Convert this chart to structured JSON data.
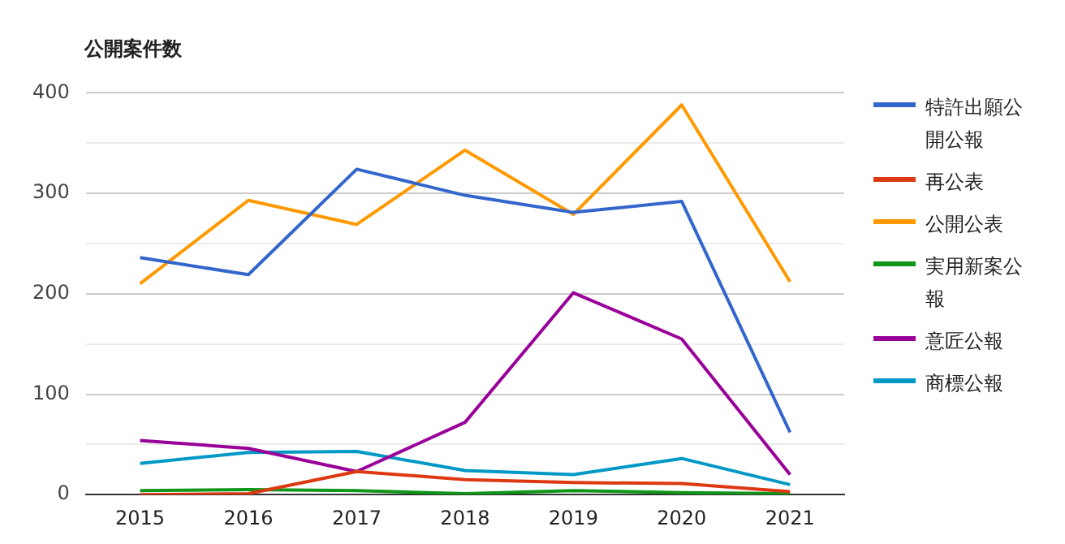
{
  "chart_data": {
    "type": "line",
    "title": "公開案件数",
    "categories": [
      "2015",
      "2016",
      "2017",
      "2018",
      "2019",
      "2020",
      "2021"
    ],
    "series": [
      {
        "name": "特許出願公開公報",
        "color": "#3366cc",
        "values": [
          236,
          219,
          324,
          298,
          281,
          292,
          62
        ]
      },
      {
        "name": "再公表",
        "color": "#dc3912",
        "values": [
          0,
          1,
          23,
          15,
          12,
          11,
          3
        ]
      },
      {
        "name": "公開公表",
        "color": "#ff9900",
        "values": [
          210,
          293,
          269,
          343,
          279,
          388,
          212
        ]
      },
      {
        "name": "実用新案公報",
        "color": "#109618",
        "values": [
          4,
          5,
          4,
          1,
          4,
          2,
          1
        ]
      },
      {
        "name": "意匠公報",
        "color": "#990099",
        "values": [
          54,
          46,
          23,
          72,
          201,
          155,
          20
        ]
      },
      {
        "name": "商標公報",
        "color": "#0099c6",
        "values": [
          31,
          42,
          43,
          24,
          20,
          36,
          10
        ]
      }
    ],
    "ylim": [
      0,
      400
    ],
    "yticks": [
      0,
      {
        "value": 50,
        "label": null
      },
      100,
      {
        "value": 150,
        "label": null
      },
      200,
      {
        "value": 250,
        "label": null
      },
      300,
      {
        "value": 350,
        "label": null
      },
      400
    ],
    "grid": "y",
    "legend": "right",
    "marker": "none",
    "line_style": "solid"
  }
}
